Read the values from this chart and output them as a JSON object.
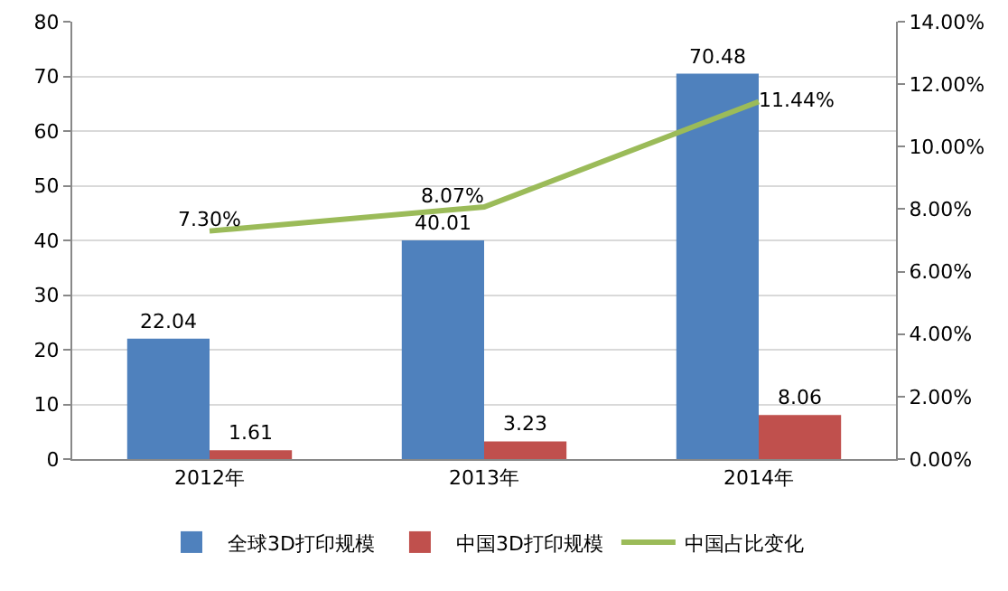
{
  "chart_data": {
    "type": "bar",
    "categories": [
      "2012年",
      "2013年",
      "2014年"
    ],
    "series": [
      {
        "name": "全球3D打印规模",
        "color": "#4f81bd",
        "values": [
          22.04,
          40.01,
          70.48
        ]
      },
      {
        "name": "中国3D打印规模",
        "color": "#c0504d",
        "values": [
          1.61,
          3.23,
          8.06
        ]
      },
      {
        "name": "中国占比变化",
        "type": "line",
        "axis": "y2",
        "color": "#9bbb59",
        "values": [
          7.3,
          8.07,
          11.44
        ],
        "value_labels": [
          "7.30%",
          "8.07%",
          "11.44%"
        ]
      }
    ],
    "ylim": [
      0,
      80
    ],
    "yticks": [
      0,
      10,
      20,
      30,
      40,
      50,
      60,
      70,
      80
    ],
    "y2lim": [
      0,
      14
    ],
    "y2ticks": [
      {
        "value": 0,
        "label": "0.00%"
      },
      {
        "value": 2,
        "label": "2.00%"
      },
      {
        "value": 4,
        "label": "4.00%"
      },
      {
        "value": 6,
        "label": "6.00%"
      },
      {
        "value": 8,
        "label": "8.00%"
      },
      {
        "value": 10,
        "label": "10.00%"
      },
      {
        "value": 12,
        "label": "12.00%"
      },
      {
        "value": 14,
        "label": "14.00%"
      }
    ],
    "data_labels": true,
    "grid": "y",
    "legend": "bottom",
    "marker": "none",
    "line_style": "solid"
  }
}
